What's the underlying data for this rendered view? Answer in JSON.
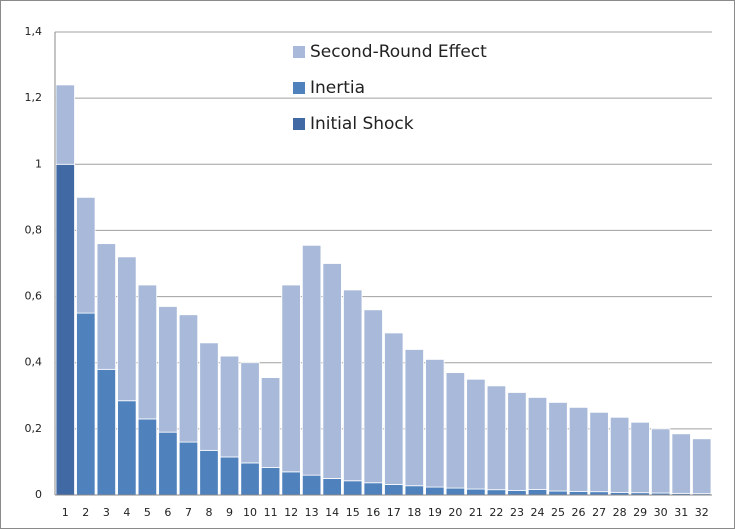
{
  "chart_data": {
    "type": "stacked_bar",
    "categories": [
      "1",
      "2",
      "3",
      "4",
      "5",
      "6",
      "7",
      "8",
      "9",
      "10",
      "11",
      "12",
      "13",
      "14",
      "15",
      "16",
      "17",
      "18",
      "19",
      "20",
      "21",
      "22",
      "23",
      "24",
      "25",
      "26",
      "27",
      "28",
      "29",
      "30",
      "31",
      "32"
    ],
    "series": [
      {
        "name": "Initial Shock",
        "color": "#4169a3",
        "values": [
          1,
          0,
          0,
          0,
          0,
          0,
          0,
          0,
          0,
          0,
          0,
          0,
          0,
          0,
          0,
          0,
          0,
          0,
          0,
          0,
          0,
          0,
          0,
          0,
          0,
          0,
          0,
          0,
          0,
          0,
          0,
          0
        ]
      },
      {
        "name": "Inertia",
        "color": "#4f81bd",
        "values": [
          0,
          0.55,
          0.38,
          0.285,
          0.23,
          0.19,
          0.16,
          0.135,
          0.115,
          0.097,
          0.083,
          0.07,
          0.06,
          0.05,
          0.043,
          0.037,
          0.032,
          0.028,
          0.024,
          0.021,
          0.018,
          0.016,
          0.014,
          0.017,
          0.012,
          0.011,
          0.01,
          0.008,
          0.007,
          0.006,
          0.005,
          0.004
        ]
      },
      {
        "name": "Second-Round Effect",
        "color": "#a8b9d9",
        "values": [
          0.24,
          0.35,
          0.38,
          0.435,
          0.405,
          0.38,
          0.385,
          0.325,
          0.305,
          0.303,
          0.272,
          0.565,
          0.695,
          0.65,
          0.577,
          0.523,
          0.458,
          0.412,
          0.386,
          0.349,
          0.332,
          0.314,
          0.296,
          0.278,
          0.268,
          0.254,
          0.24,
          0.227,
          0.213,
          0.194,
          0.18,
          0.166
        ]
      }
    ],
    "ylim": [
      0,
      1.4
    ],
    "yticks": [
      0,
      {
        "value": 0.2,
        "label": "0,2"
      },
      {
        "value": 0.4,
        "label": "0,4"
      },
      {
        "value": 0.6,
        "label": "0,6"
      },
      {
        "value": 0.8,
        "label": "0,8"
      },
      1,
      {
        "value": 1.2,
        "label": "1,2"
      },
      {
        "value": 1.4,
        "label": "1,4"
      }
    ],
    "grid": true,
    "legend_position": "top"
  }
}
